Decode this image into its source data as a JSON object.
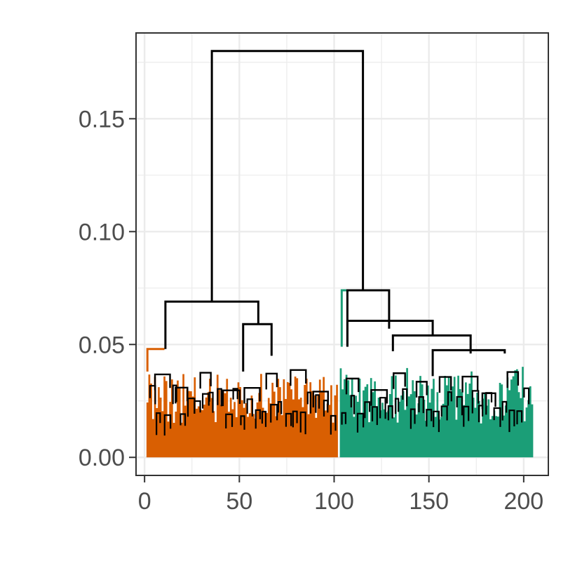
{
  "chart_data": {
    "type": "dendrogram",
    "title": "",
    "xlabel": "",
    "ylabel": "",
    "xlim": [
      -4.5,
      213
    ],
    "ylim": [
      -0.008,
      0.188
    ],
    "x_ticks": [
      {
        "value": 0,
        "label": "0"
      },
      {
        "value": 50,
        "label": "50"
      },
      {
        "value": 100,
        "label": "100"
      },
      {
        "value": 150,
        "label": "150"
      },
      {
        "value": 200,
        "label": "200"
      }
    ],
    "y_ticks": [
      {
        "value": 0.0,
        "label": "0.00"
      },
      {
        "value": 0.05,
        "label": "0.05"
      },
      {
        "value": 0.1,
        "label": "0.10"
      },
      {
        "value": 0.15,
        "label": "0.15"
      }
    ],
    "grid": true,
    "theme": "bw",
    "n_leaves": 205,
    "root_height": 0.18,
    "clusters": [
      {
        "color": "#D95F02",
        "leaf_range": [
          1,
          102
        ],
        "merge_height": 0.048
      },
      {
        "color": "#1B9E77",
        "leaf_range": [
          103,
          205
        ],
        "merge_height": 0.074
      }
    ],
    "merges": [
      {
        "left": [
          35.5,
          0.069
        ],
        "right": [
          115.2,
          0.074
        ],
        "height": 0.18
      },
      {
        "left": [
          11,
          0.048
        ],
        "right": [
          60,
          0.059
        ],
        "height": 0.069
      },
      {
        "left": [
          52,
          0.038
        ],
        "right": [
          67,
          0.045
        ],
        "height": 0.059
      },
      {
        "left": [
          107,
          0.049
        ],
        "right": [
          129,
          0.057
        ],
        "height": 0.074
      },
      {
        "left": [
          107,
          0.049
        ],
        "right": [
          152,
          0.054
        ],
        "height": 0.0605
      },
      {
        "left": [
          131,
          0.047
        ],
        "right": [
          172,
          0.046
        ],
        "height": 0.054
      },
      {
        "left": [
          152,
          0.036
        ],
        "right": [
          190,
          0.046
        ],
        "height": 0.0475
      }
    ],
    "inner_branch_color": "#000000",
    "grid_color": "#ebebeb",
    "panel_border_color": "#333333"
  }
}
